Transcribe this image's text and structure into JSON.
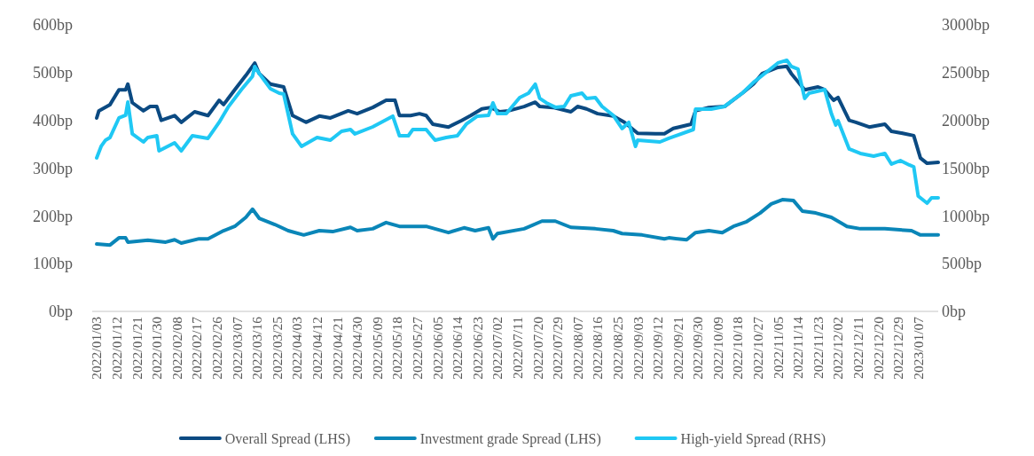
{
  "chart_data": {
    "type": "line",
    "legend": "bottom",
    "line_style": "solid",
    "xlim": [
      "2022-01-01",
      "2023-01-16"
    ],
    "xticks": [
      {
        "value": "2022-01-03",
        "label": "2022/01/03"
      },
      {
        "value": "2022-01-12",
        "label": "2022/01/12"
      },
      {
        "value": "2022-01-21",
        "label": "2022/01/21"
      },
      {
        "value": "2022-01-30",
        "label": "2022/01/30"
      },
      {
        "value": "2022-02-08",
        "label": "2022/02/08"
      },
      {
        "value": "2022-02-17",
        "label": "2022/02/17"
      },
      {
        "value": "2022-02-26",
        "label": "2022/02/26"
      },
      {
        "value": "2022-03-07",
        "label": "2022/03/07"
      },
      {
        "value": "2022-03-16",
        "label": "2022/03/16"
      },
      {
        "value": "2022-03-25",
        "label": "2022/03/25"
      },
      {
        "value": "2022-04-03",
        "label": "2022/04/03"
      },
      {
        "value": "2022-04-12",
        "label": "2022/04/12"
      },
      {
        "value": "2022-04-21",
        "label": "2022/04/21"
      },
      {
        "value": "2022-04-30",
        "label": "2022/04/30"
      },
      {
        "value": "2022-05-09",
        "label": "2022/05/09"
      },
      {
        "value": "2022-05-18",
        "label": "2022/05/18"
      },
      {
        "value": "2022-05-27",
        "label": "2022/05/27"
      },
      {
        "value": "2022-06-05",
        "label": "2022/06/05"
      },
      {
        "value": "2022-06-14",
        "label": "2022/06/14"
      },
      {
        "value": "2022-06-23",
        "label": "2022/06/23"
      },
      {
        "value": "2022-07-02",
        "label": "2022/07/02"
      },
      {
        "value": "2022-07-11",
        "label": "2022/07/11"
      },
      {
        "value": "2022-07-20",
        "label": "2022/07/20"
      },
      {
        "value": "2022-07-29",
        "label": "2022/07/29"
      },
      {
        "value": "2022-08-07",
        "label": "2022/08/07"
      },
      {
        "value": "2022-08-16",
        "label": "2022/08/16"
      },
      {
        "value": "2022-08-25",
        "label": "2022/08/25"
      },
      {
        "value": "2022-09-03",
        "label": "2022/09/03"
      },
      {
        "value": "2022-09-12",
        "label": "2022/09/12"
      },
      {
        "value": "2022-09-21",
        "label": "2022/09/21"
      },
      {
        "value": "2022-09-30",
        "label": "2022/09/30"
      },
      {
        "value": "2022-10-09",
        "label": "2022/10/09"
      },
      {
        "value": "2022-10-18",
        "label": "2022/10/18"
      },
      {
        "value": "2022-10-27",
        "label": "2022/10/27"
      },
      {
        "value": "2022-11-05",
        "label": "2022/11/05"
      },
      {
        "value": "2022-11-14",
        "label": "2022/11/14"
      },
      {
        "value": "2022-11-23",
        "label": "2022/11/23"
      },
      {
        "value": "2022-12-02",
        "label": "2022/12/02"
      },
      {
        "value": "2022-12-11",
        "label": "2022/12/11"
      },
      {
        "value": "2022-12-20",
        "label": "2022/12/20"
      },
      {
        "value": "2022-12-29",
        "label": "2022/12/29"
      },
      {
        "value": "2023-01-07",
        "label": "2023/01/07"
      }
    ],
    "ylim": [
      0,
      600
    ],
    "yticks": [
      {
        "value": 0,
        "label": "0bp"
      },
      {
        "value": 100,
        "label": "100bp"
      },
      {
        "value": 200,
        "label": "200bp"
      },
      {
        "value": 300,
        "label": "300bp"
      },
      {
        "value": 400,
        "label": "400bp"
      },
      {
        "value": 500,
        "label": "500bp"
      },
      {
        "value": 600,
        "label": "600bp"
      }
    ],
    "y2lim": [
      0,
      3000
    ],
    "y2ticks": [
      {
        "value": 0,
        "label": "0bp"
      },
      {
        "value": 500,
        "label": "500bp"
      },
      {
        "value": 1000,
        "label": "1000bp"
      },
      {
        "value": 1500,
        "label": "1500bp"
      },
      {
        "value": 2000,
        "label": "2000bp"
      },
      {
        "value": 2500,
        "label": "2500bp"
      },
      {
        "value": 3000,
        "label": "3000bp"
      }
    ],
    "series": [
      {
        "name": "Overall Spread (LHS)",
        "color": "#0b4a82",
        "x": [
          "2022-01-03",
          "2022-01-04",
          "2022-01-09",
          "2022-01-13",
          "2022-01-16",
          "2022-01-17",
          "2022-01-19",
          "2022-01-24",
          "2022-01-27",
          "2022-01-30",
          "2022-02-01",
          "2022-02-07",
          "2022-02-10",
          "2022-02-16",
          "2022-02-22",
          "2022-02-27",
          "2022-03-01",
          "2022-03-06",
          "2022-03-11",
          "2022-03-15",
          "2022-03-17",
          "2022-03-22",
          "2022-03-28",
          "2022-04-01",
          "2022-04-07",
          "2022-04-13",
          "2022-04-18",
          "2022-04-26",
          "2022-04-30",
          "2022-05-07",
          "2022-05-13",
          "2022-05-17",
          "2022-05-19",
          "2022-05-24",
          "2022-05-28",
          "2022-05-31",
          "2022-06-03",
          "2022-06-10",
          "2022-06-16",
          "2022-06-20",
          "2022-06-25",
          "2022-06-29",
          "2022-07-03",
          "2022-07-07",
          "2022-07-14",
          "2022-07-19",
          "2022-07-21",
          "2022-07-27",
          "2022-08-04",
          "2022-08-07",
          "2022-08-11",
          "2022-08-16",
          "2022-08-23",
          "2022-08-28",
          "2022-09-03",
          "2022-09-11",
          "2022-09-15",
          "2022-09-19",
          "2022-09-27",
          "2022-09-29",
          "2022-10-05",
          "2022-10-12",
          "2022-10-20",
          "2022-10-25",
          "2022-10-29",
          "2022-11-05",
          "2022-11-09",
          "2022-11-11",
          "2022-11-17",
          "2022-11-23",
          "2022-11-26",
          "2022-11-30",
          "2022-12-02",
          "2022-12-07",
          "2022-12-10",
          "2022-12-16",
          "2022-12-23",
          "2022-12-26",
          "2022-12-31",
          "2023-01-05",
          "2023-01-08",
          "2023-01-11",
          "2023-01-16"
        ],
        "values": [
          405,
          420,
          433,
          464,
          464,
          476,
          437,
          420,
          429,
          429,
          400,
          410,
          396,
          418,
          410,
          442,
          433,
          464,
          494,
          520,
          498,
          476,
          470,
          410,
          396,
          409,
          405,
          420,
          414,
          427,
          442,
          442,
          410,
          410,
          414,
          410,
          392,
          386,
          400,
          410,
          424,
          427,
          418,
          420,
          429,
          438,
          429,
          427,
          418,
          429,
          424,
          414,
          409,
          396,
          373,
          372,
          372,
          383,
          392,
          420,
          427,
          429,
          457,
          476,
          498,
          511,
          513,
          498,
          464,
          470,
          464,
          442,
          448,
          400,
          396,
          386,
          392,
          377,
          373,
          368,
          321,
          310,
          312
        ]
      },
      {
        "name": "Investment grade Spread (LHS)",
        "color": "#0a86b8",
        "x": [
          "2022-01-03",
          "2022-01-09",
          "2022-01-13",
          "2022-01-16",
          "2022-01-17",
          "2022-01-26",
          "2022-02-03",
          "2022-02-07",
          "2022-02-10",
          "2022-02-18",
          "2022-02-22",
          "2022-03-01",
          "2022-03-06",
          "2022-03-11",
          "2022-03-14",
          "2022-03-17",
          "2022-03-24",
          "2022-03-30",
          "2022-04-06",
          "2022-04-13",
          "2022-04-19",
          "2022-04-27",
          "2022-04-30",
          "2022-05-07",
          "2022-05-13",
          "2022-05-19",
          "2022-05-31",
          "2022-06-10",
          "2022-06-17",
          "2022-06-22",
          "2022-06-28",
          "2022-06-30",
          "2022-07-02",
          "2022-07-14",
          "2022-07-22",
          "2022-07-28",
          "2022-08-04",
          "2022-08-15",
          "2022-08-23",
          "2022-08-27",
          "2022-09-05",
          "2022-09-15",
          "2022-09-17",
          "2022-09-25",
          "2022-09-29",
          "2022-10-05",
          "2022-10-11",
          "2022-10-16",
          "2022-10-22",
          "2022-10-28",
          "2022-11-02",
          "2022-11-07",
          "2022-11-12",
          "2022-11-16",
          "2022-11-22",
          "2022-11-29",
          "2022-12-06",
          "2022-12-12",
          "2022-12-23",
          "2023-01-04",
          "2023-01-08",
          "2023-01-16"
        ],
        "values": [
          141,
          139,
          154,
          154,
          145,
          149,
          145,
          150,
          143,
          152,
          152,
          169,
          178,
          197,
          214,
          195,
          182,
          169,
          160,
          169,
          167,
          176,
          169,
          173,
          186,
          178,
          178,
          165,
          175,
          169,
          175,
          152,
          163,
          173,
          189,
          189,
          176,
          173,
          169,
          163,
          160,
          152,
          154,
          150,
          165,
          169,
          165,
          178,
          188,
          206,
          225,
          234,
          232,
          210,
          206,
          197,
          178,
          173,
          173,
          169,
          160,
          160
        ]
      },
      {
        "name": "High-yield Spread (RHS)",
        "color": "#1fc8f4",
        "axis": "y2",
        "x": [
          "2022-01-03",
          "2022-01-05",
          "2022-01-07",
          "2022-01-09",
          "2022-01-13",
          "2022-01-16",
          "2022-01-17",
          "2022-01-19",
          "2022-01-24",
          "2022-01-26",
          "2022-01-30",
          "2022-01-31",
          "2022-02-07",
          "2022-02-10",
          "2022-02-15",
          "2022-02-22",
          "2022-02-27",
          "2022-03-03",
          "2022-03-09",
          "2022-03-14",
          "2022-03-15",
          "2022-03-17",
          "2022-03-22",
          "2022-03-26",
          "2022-03-28",
          "2022-04-01",
          "2022-04-05",
          "2022-04-12",
          "2022-04-18",
          "2022-04-23",
          "2022-04-27",
          "2022-04-29",
          "2022-05-07",
          "2022-05-16",
          "2022-05-19",
          "2022-05-23",
          "2022-05-25",
          "2022-05-31",
          "2022-06-04",
          "2022-06-09",
          "2022-06-14",
          "2022-06-18",
          "2022-06-23",
          "2022-06-28",
          "2022-06-30",
          "2022-07-02",
          "2022-07-06",
          "2022-07-12",
          "2022-07-16",
          "2022-07-19",
          "2022-07-21",
          "2022-07-24",
          "2022-07-28",
          "2022-08-01",
          "2022-08-04",
          "2022-08-09",
          "2022-08-11",
          "2022-08-15",
          "2022-08-18",
          "2022-08-23",
          "2022-08-27",
          "2022-08-30",
          "2022-09-02",
          "2022-09-03",
          "2022-09-13",
          "2022-09-17",
          "2022-09-28",
          "2022-09-29",
          "2022-10-06",
          "2022-10-12",
          "2022-10-20",
          "2022-10-25",
          "2022-10-29",
          "2022-11-05",
          "2022-11-09",
          "2022-11-11",
          "2022-11-14",
          "2022-11-17",
          "2022-11-19",
          "2022-11-26",
          "2022-11-29",
          "2022-12-01",
          "2022-12-02",
          "2022-12-07",
          "2022-12-12",
          "2022-12-18",
          "2022-12-23",
          "2022-12-26",
          "2022-12-30",
          "2023-01-03",
          "2023-01-05",
          "2023-01-07",
          "2023-01-11",
          "2023-01-13",
          "2023-01-16"
        ],
        "values": [
          1607,
          1728,
          1793,
          1821,
          2025,
          2053,
          2192,
          1858,
          1774,
          1821,
          1839,
          1681,
          1765,
          1681,
          1839,
          1812,
          1979,
          2137,
          2322,
          2462,
          2564,
          2490,
          2332,
          2285,
          2276,
          1858,
          1728,
          1821,
          1793,
          1886,
          1904,
          1858,
          1932,
          2044,
          1839,
          1839,
          1904,
          1904,
          1793,
          1821,
          1839,
          1960,
          2044,
          2053,
          2183,
          2072,
          2072,
          2239,
          2285,
          2378,
          2230,
          2183,
          2137,
          2146,
          2257,
          2285,
          2230,
          2239,
          2146,
          2053,
          1914,
          1979,
          1728,
          1793,
          1774,
          1812,
          1904,
          2118,
          2118,
          2146,
          2285,
          2397,
          2471,
          2601,
          2629,
          2564,
          2536,
          2230,
          2285,
          2322,
          2072,
          1951,
          1997,
          1700,
          1654,
          1626,
          1654,
          1542,
          1579,
          1533,
          1514,
          1208,
          1133,
          1189,
          1189
        ]
      }
    ]
  }
}
